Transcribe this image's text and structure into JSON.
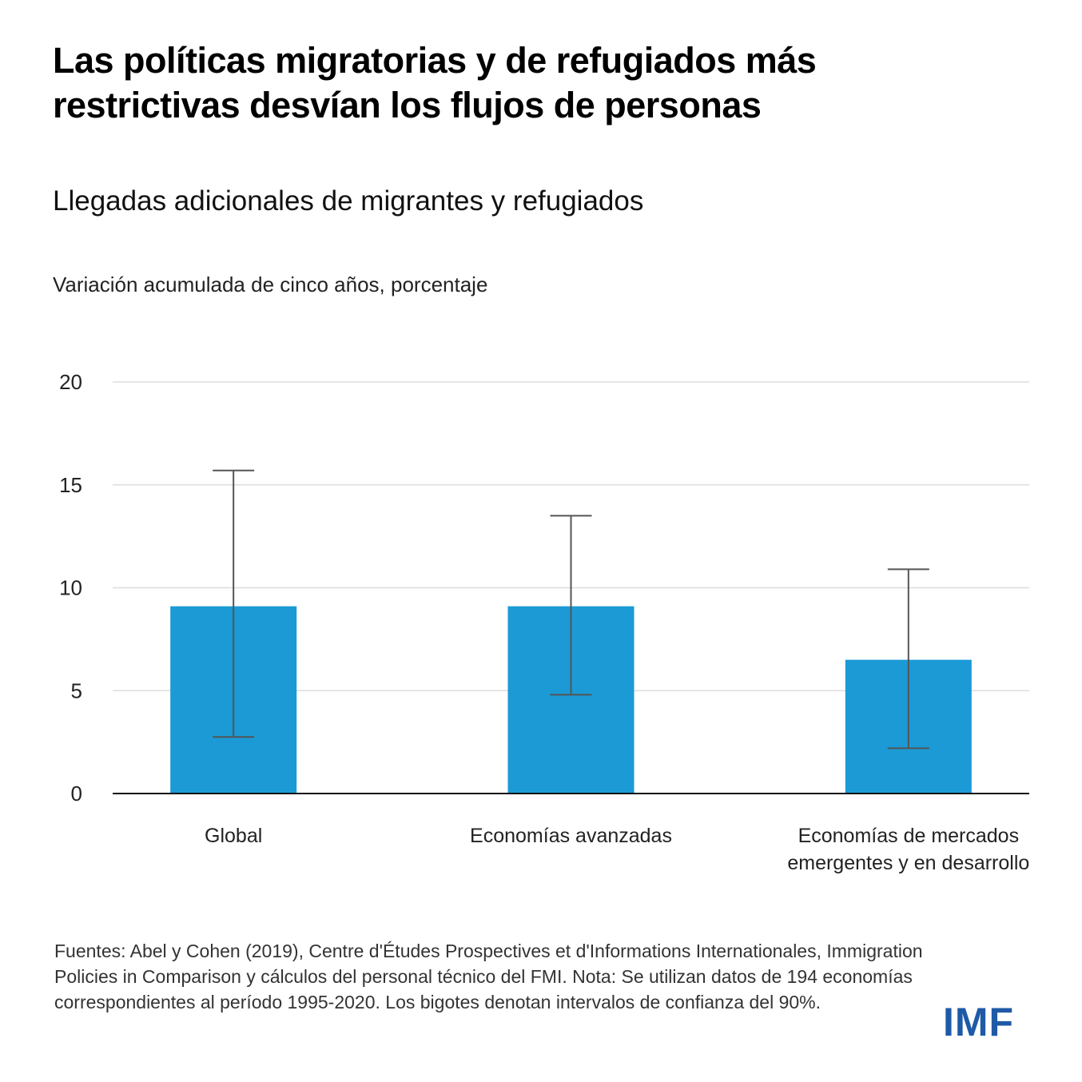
{
  "header": {
    "title": "Las políticas migratorias y de refugiados más restrictivas desvían los flujos de personas",
    "subtitle": "Llegadas adicionales de migrantes y refugiados",
    "unit_label": "Variación acumulada de cinco años, porcentaje"
  },
  "colors": {
    "bar": "#1b9ad6",
    "whisker": "#555555",
    "gridline": "#dddddd",
    "baseline": "#111111",
    "logo": "#1f5aa6"
  },
  "chart_data": {
    "type": "bar",
    "title": "Llegadas adicionales de migrantes y refugiados",
    "ylabel": "Variación acumulada de cinco años, porcentaje",
    "xlabel": "",
    "ylim": [
      0,
      20
    ],
    "yticks": [
      0,
      5,
      10,
      15,
      20
    ],
    "grid": true,
    "categories": [
      [
        "Global"
      ],
      [
        "Economías avanzadas"
      ],
      [
        "Economías de mercados",
        "emergentes y en desarrollo"
      ]
    ],
    "values": [
      9.1,
      9.1,
      6.5
    ],
    "error_bars": {
      "type": "90% confidence interval",
      "lower": [
        2.75,
        4.8,
        2.2
      ],
      "upper": [
        15.7,
        13.5,
        10.9
      ]
    }
  },
  "footer": {
    "note": "Fuentes: Abel y Cohen (2019), Centre d'Études Prospectives et d'Informations Internationales, Immigration Policies in Comparison y cálculos del personal técnico del FMI. Nota: Se utilizan datos de 194 economías correspondientes al período 1995-2020. Los bigotes denotan intervalos de confianza del 90%.",
    "logo_text": "IMF"
  }
}
